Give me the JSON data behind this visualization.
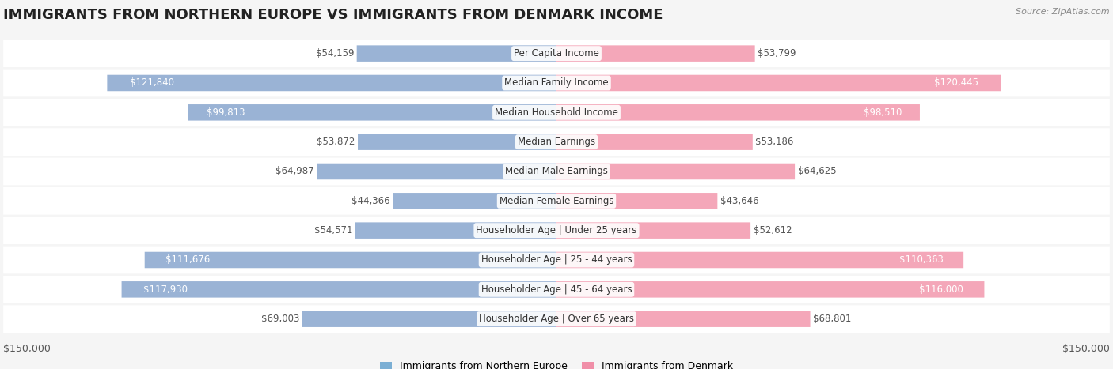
{
  "title": "IMMIGRANTS FROM NORTHERN EUROPE VS IMMIGRANTS FROM DENMARK INCOME",
  "source": "Source: ZipAtlas.com",
  "categories": [
    "Per Capita Income",
    "Median Family Income",
    "Median Household Income",
    "Median Earnings",
    "Median Male Earnings",
    "Median Female Earnings",
    "Householder Age | Under 25 years",
    "Householder Age | 25 - 44 years",
    "Householder Age | 45 - 64 years",
    "Householder Age | Over 65 years"
  ],
  "left_values": [
    54159,
    121840,
    99813,
    53872,
    64987,
    44366,
    54571,
    111676,
    117930,
    69003
  ],
  "right_values": [
    53799,
    120445,
    98510,
    53186,
    64625,
    43646,
    52612,
    110363,
    116000,
    68801
  ],
  "left_labels": [
    "$54,159",
    "$121,840",
    "$99,813",
    "$53,872",
    "$64,987",
    "$44,366",
    "$54,571",
    "$111,676",
    "$117,930",
    "$69,003"
  ],
  "right_labels": [
    "$53,799",
    "$120,445",
    "$98,510",
    "$53,186",
    "$64,625",
    "$43,646",
    "$52,612",
    "$110,363",
    "$116,000",
    "$68,801"
  ],
  "max_value": 150000,
  "left_color": "#9ab3d5",
  "right_color": "#f4a7b9",
  "left_color_legend": "#7bafd4",
  "right_color_legend": "#f08fa8",
  "left_label_color_small": "#555555",
  "left_label_color_large": "#ffffff",
  "right_label_color_small": "#555555",
  "right_label_color_large": "#ffffff",
  "background_color": "#f5f5f5",
  "row_bg_color": "#ffffff",
  "legend_left": "Immigrants from Northern Europe",
  "legend_right": "Immigrants from Denmark",
  "title_fontsize": 13,
  "label_fontsize": 8.5,
  "category_fontsize": 8.5,
  "axis_label_fontsize": 9,
  "threshold_for_white": 70000
}
